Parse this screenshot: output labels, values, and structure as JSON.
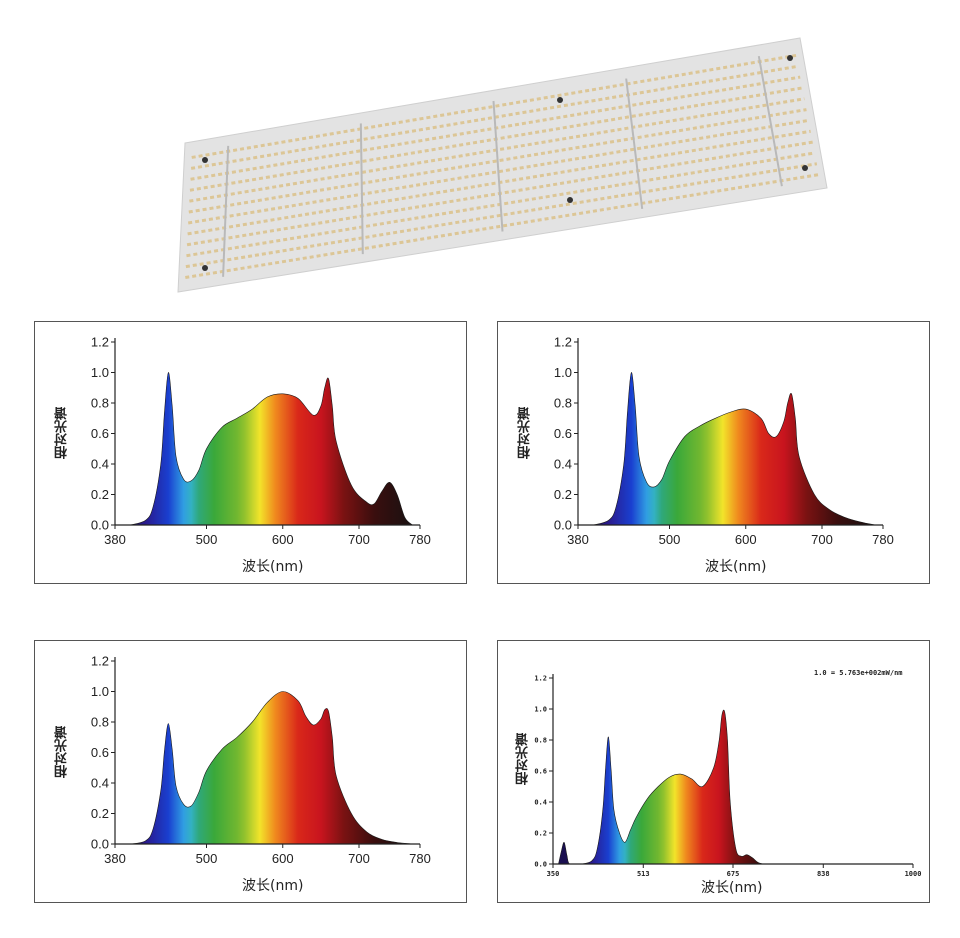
{
  "colors": {
    "violet": "#2a1a8c",
    "blue": "#1a3fd0",
    "cyan": "#35b6e6",
    "green": "#3aa83a",
    "yellow": "#f2e42a",
    "orange": "#f08a1e",
    "red": "#c8141e",
    "darkred": "#5a1010",
    "black": "#111111"
  },
  "chart_data": [
    {
      "type": "area",
      "ylabel": "相对光谱",
      "xlabel": "波长(nm)",
      "xlim": [
        380,
        780
      ],
      "ylim": [
        0,
        1.2
      ],
      "xticks": [
        380,
        500,
        600,
        700,
        780
      ],
      "yticks": [
        "0.0",
        "0.2",
        "0.4",
        "0.6",
        "0.8",
        "1.0",
        "1.2"
      ],
      "x": [
        400,
        420,
        430,
        440,
        445,
        450,
        455,
        460,
        470,
        480,
        490,
        500,
        520,
        540,
        560,
        580,
        600,
        620,
        640,
        650,
        655,
        660,
        665,
        670,
        690,
        710,
        720,
        730,
        740,
        750,
        760,
        770
      ],
      "y": [
        0,
        0.03,
        0.12,
        0.4,
        0.75,
        1.0,
        0.78,
        0.45,
        0.3,
        0.29,
        0.36,
        0.5,
        0.64,
        0.7,
        0.76,
        0.84,
        0.86,
        0.83,
        0.72,
        0.78,
        0.9,
        0.96,
        0.78,
        0.55,
        0.26,
        0.15,
        0.14,
        0.22,
        0.28,
        0.2,
        0.05,
        0
      ]
    },
    {
      "type": "area",
      "ylabel": "相对光谱",
      "xlabel": "波长(nm)",
      "xlim": [
        380,
        780
      ],
      "ylim": [
        0,
        1.2
      ],
      "xticks": [
        380,
        500,
        600,
        700,
        780
      ],
      "yticks": [
        "0.0",
        "0.2",
        "0.4",
        "0.6",
        "0.8",
        "1.0",
        "1.2"
      ],
      "x": [
        400,
        420,
        430,
        440,
        445,
        450,
        455,
        460,
        470,
        480,
        490,
        500,
        520,
        540,
        560,
        580,
        600,
        620,
        630,
        640,
        650,
        655,
        660,
        665,
        670,
        690,
        710,
        730,
        750,
        770
      ],
      "y": [
        0,
        0.03,
        0.12,
        0.4,
        0.75,
        1.0,
        0.78,
        0.45,
        0.28,
        0.25,
        0.3,
        0.42,
        0.58,
        0.65,
        0.7,
        0.74,
        0.76,
        0.7,
        0.6,
        0.58,
        0.68,
        0.8,
        0.86,
        0.7,
        0.45,
        0.2,
        0.1,
        0.05,
        0.02,
        0
      ]
    },
    {
      "type": "area",
      "ylabel": "相对光谱",
      "xlabel": "波长(nm)",
      "xlim": [
        380,
        780
      ],
      "ylim": [
        0,
        1.2
      ],
      "xticks": [
        380,
        500,
        600,
        700,
        780
      ],
      "yticks": [
        "0.0",
        "0.2",
        "0.4",
        "0.6",
        "0.8",
        "1.0",
        "1.2"
      ],
      "x": [
        400,
        420,
        430,
        440,
        445,
        450,
        455,
        460,
        470,
        480,
        490,
        500,
        520,
        540,
        560,
        580,
        600,
        620,
        630,
        640,
        650,
        655,
        660,
        665,
        670,
        690,
        710,
        730,
        750,
        770
      ],
      "y": [
        0,
        0.02,
        0.1,
        0.35,
        0.62,
        0.79,
        0.62,
        0.38,
        0.26,
        0.25,
        0.34,
        0.48,
        0.62,
        0.7,
        0.8,
        0.93,
        1.0,
        0.94,
        0.84,
        0.78,
        0.82,
        0.88,
        0.87,
        0.7,
        0.45,
        0.2,
        0.08,
        0.03,
        0.01,
        0
      ]
    },
    {
      "type": "area",
      "ylabel": "相对光谱",
      "xlabel": "波长(nm)",
      "note": "1.0 = 5.763e+002mW/nm",
      "xlim": [
        350,
        1000
      ],
      "ylim": [
        0,
        1.2
      ],
      "xticks": [
        350,
        513,
        675,
        838,
        1000
      ],
      "yticks": [
        "0.0",
        "0.2",
        "0.4",
        "0.6",
        "0.8",
        "1.0",
        "1.2"
      ],
      "x": [
        360,
        365,
        370,
        375,
        380,
        400,
        420,
        430,
        440,
        445,
        450,
        455,
        460,
        470,
        480,
        490,
        500,
        520,
        540,
        560,
        580,
        600,
        620,
        640,
        650,
        655,
        660,
        665,
        670,
        680,
        690,
        700,
        710,
        720,
        730
      ],
      "y": [
        0,
        0.08,
        0.14,
        0.06,
        0,
        0,
        0.02,
        0.1,
        0.35,
        0.62,
        0.82,
        0.6,
        0.35,
        0.2,
        0.14,
        0.22,
        0.3,
        0.42,
        0.5,
        0.56,
        0.58,
        0.55,
        0.5,
        0.62,
        0.8,
        0.96,
        0.98,
        0.8,
        0.4,
        0.1,
        0.05,
        0.06,
        0.04,
        0.01,
        0
      ]
    }
  ]
}
